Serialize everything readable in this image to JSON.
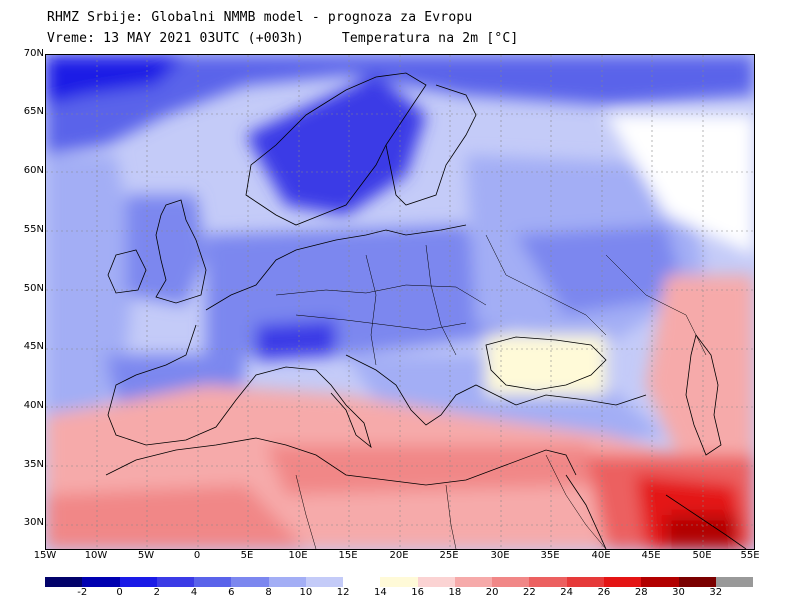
{
  "header": {
    "title": "RHMZ Srbije: Globalni NMMB model - prognoza za Evropu",
    "valid_time": "Vreme: 13 MAY 2021 03UTC (+003h)",
    "variable": "Temperatura na 2m [°C]"
  },
  "map": {
    "lat_labels": [
      "70N",
      "65N",
      "60N",
      "55N",
      "50N",
      "45N",
      "40N",
      "35N",
      "30N"
    ],
    "lon_labels": [
      "15W",
      "10W",
      "5W",
      "0",
      "5E",
      "10E",
      "15E",
      "20E",
      "25E",
      "30E",
      "35E",
      "40E",
      "45E",
      "50E",
      "55E"
    ],
    "colors": {
      "ocean_cold": "#3f57d8",
      "land_cool": "#b8c2f5",
      "warm": "#f7b5b5",
      "hot": "#e42020"
    }
  },
  "legend": {
    "labels": [
      "-2",
      "0",
      "2",
      "4",
      "6",
      "8",
      "10",
      "12",
      "14",
      "16",
      "18",
      "20",
      "22",
      "24",
      "26",
      "28",
      "30",
      "32"
    ],
    "colors": [
      "#02026a",
      "#0000b0",
      "#1a1ae6",
      "#3b3be6",
      "#5a63ea",
      "#7c87ef",
      "#a3aef5",
      "#c4cbf8",
      "#ffffff",
      "#fffad8",
      "#fbd3d3",
      "#f6aaaa",
      "#f18787",
      "#ec6060",
      "#e63a3a",
      "#e41414",
      "#b20000",
      "#7a0000",
      "#999999"
    ]
  }
}
